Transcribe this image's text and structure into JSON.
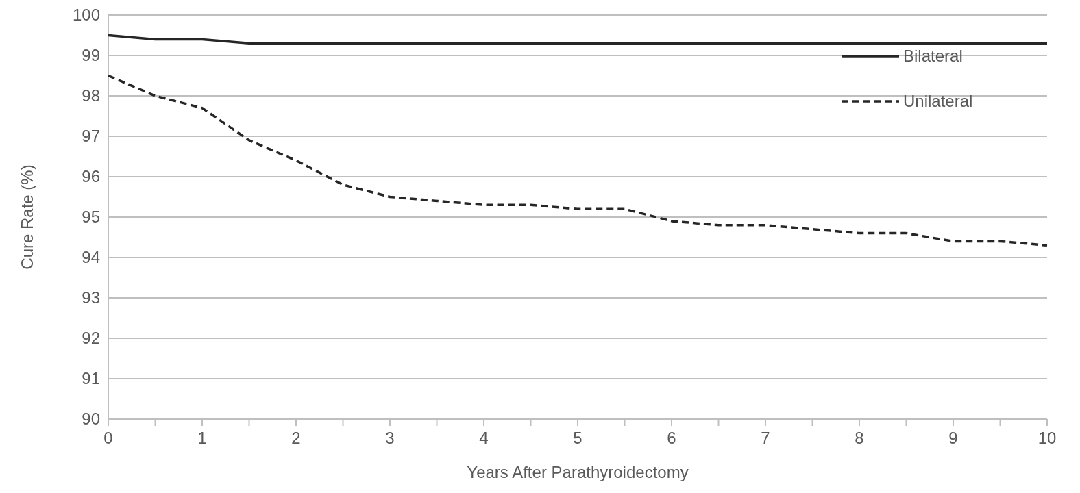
{
  "chart_data": {
    "type": "line",
    "xlabel": "Years After Parathyroidectomy",
    "ylabel": "Cure Rate (%)",
    "x": [
      0,
      0.5,
      1,
      1.5,
      2,
      2.5,
      3,
      3.5,
      4,
      4.5,
      5,
      5.5,
      6,
      6.5,
      7,
      7.5,
      8,
      8.5,
      9,
      9.5,
      10
    ],
    "series": [
      {
        "name": "Bilateral",
        "color": "#262626",
        "line_style": "solid",
        "values": [
          99.5,
          99.4,
          99.4,
          99.3,
          99.3,
          99.3,
          99.3,
          99.3,
          99.3,
          99.3,
          99.3,
          99.3,
          99.3,
          99.3,
          99.3,
          99.3,
          99.3,
          99.3,
          99.3,
          99.3,
          99.3
        ]
      },
      {
        "name": "Unilateral",
        "color": "#262626",
        "line_style": "dashed",
        "values": [
          98.5,
          98.0,
          97.7,
          96.9,
          96.4,
          95.8,
          95.5,
          95.4,
          95.3,
          95.3,
          95.2,
          95.2,
          94.9,
          94.8,
          94.8,
          94.7,
          94.6,
          94.6,
          94.4,
          94.4,
          94.3
        ]
      }
    ],
    "xlim": [
      0,
      10
    ],
    "xticks": [
      0,
      {
        "value": 0.5,
        "label": null
      },
      1,
      {
        "value": 1.5,
        "label": null
      },
      2,
      {
        "value": 2.5,
        "label": null
      },
      3,
      {
        "value": 3.5,
        "label": null
      },
      4,
      {
        "value": 4.5,
        "label": null
      },
      5,
      {
        "value": 5.5,
        "label": null
      },
      6,
      {
        "value": 6.5,
        "label": null
      },
      7,
      {
        "value": 7.5,
        "label": null
      },
      8,
      {
        "value": 8.5,
        "label": null
      },
      9,
      {
        "value": 9.5,
        "label": null
      },
      10
    ],
    "ylim": [
      90,
      100
    ],
    "yticks": [
      90,
      91,
      92,
      93,
      94,
      95,
      96,
      97,
      98,
      99,
      100
    ],
    "grid": "y",
    "legend": "top right"
  }
}
